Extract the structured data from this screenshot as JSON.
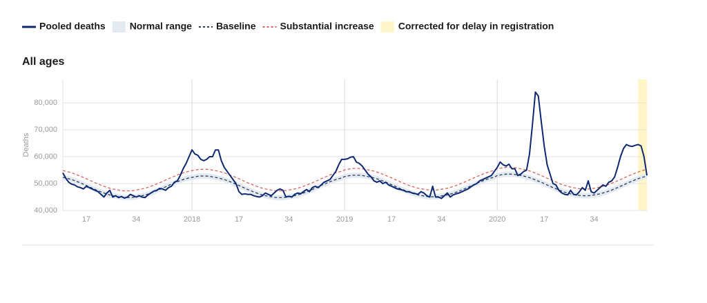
{
  "chart_data": {
    "type": "line",
    "title": "All ages",
    "y_label": "Deaths",
    "ylim": [
      40000,
      88700
    ],
    "yticks": [
      {
        "value": 40000,
        "label": "40,000"
      },
      {
        "value": 50000,
        "label": "50,000"
      },
      {
        "value": 60000,
        "label": "60,000"
      },
      {
        "value": 70000,
        "label": "70,000"
      },
      {
        "value": 80000,
        "label": "80,000"
      }
    ],
    "grid": true,
    "categories": [
      null,
      null,
      null,
      null,
      null,
      null,
      null,
      null,
      "17",
      null,
      null,
      null,
      null,
      null,
      null,
      null,
      null,
      null,
      null,
      null,
      null,
      null,
      null,
      null,
      null,
      "34",
      null,
      null,
      null,
      null,
      null,
      null,
      null,
      null,
      null,
      null,
      null,
      null,
      null,
      null,
      null,
      null,
      null,
      null,
      "2018",
      null,
      null,
      null,
      null,
      null,
      null,
      null,
      null,
      null,
      null,
      null,
      null,
      null,
      null,
      null,
      "17",
      null,
      null,
      null,
      null,
      null,
      null,
      null,
      null,
      null,
      null,
      null,
      null,
      null,
      null,
      null,
      null,
      "34",
      null,
      null,
      null,
      null,
      null,
      null,
      null,
      null,
      null,
      null,
      null,
      null,
      null,
      null,
      null,
      null,
      null,
      null,
      "2019",
      null,
      null,
      null,
      null,
      null,
      null,
      null,
      null,
      null,
      null,
      null,
      null,
      null,
      null,
      null,
      "17",
      null,
      null,
      null,
      null,
      null,
      null,
      null,
      null,
      null,
      null,
      null,
      null,
      null,
      null,
      null,
      null,
      "34",
      null,
      null,
      null,
      null,
      null,
      null,
      null,
      null,
      null,
      null,
      null,
      null,
      null,
      null,
      null,
      null,
      null,
      null,
      "2020",
      null,
      null,
      null,
      null,
      null,
      null,
      null,
      null,
      null,
      null,
      null,
      null,
      null,
      null,
      null,
      "17",
      null,
      null,
      null,
      null,
      null,
      null,
      null,
      null,
      null,
      null,
      null,
      null,
      null,
      null,
      null,
      null,
      "34",
      null,
      null,
      null,
      null,
      null,
      null,
      null,
      null,
      null,
      null,
      null,
      null,
      null,
      null,
      null,
      null,
      null,
      null
    ],
    "series": [
      {
        "name": "Pooled deaths",
        "color": "#0d2872",
        "dash": false,
        "values": [
          54000,
          52000,
          50500,
          49800,
          49500,
          48800,
          48500,
          48000,
          49000,
          48500,
          48000,
          47500,
          47000,
          46000,
          45000,
          46500,
          47500,
          45000,
          45500,
          44800,
          45200,
          44600,
          45000,
          46000,
          45500,
          45000,
          45500,
          45000,
          44800,
          45800,
          46500,
          47200,
          47500,
          48200,
          48000,
          47500,
          48500,
          49000,
          50500,
          51000,
          53000,
          55500,
          57500,
          60000,
          62500,
          61000,
          60500,
          59000,
          58500,
          59000,
          60000,
          60000,
          62500,
          62500,
          58500,
          56000,
          54500,
          53000,
          51500,
          50000,
          47000,
          46000,
          46200,
          46000,
          46000,
          45500,
          45200,
          45000,
          45500,
          46500,
          46000,
          45500,
          46500,
          47500,
          48000,
          47500,
          45000,
          45300,
          45000,
          46000,
          46500,
          46200,
          47000,
          47800,
          47000,
          48500,
          49000,
          48500,
          49500,
          50500,
          51000,
          51500,
          53000,
          54500,
          57000,
          59000,
          59000,
          59200,
          59800,
          60000,
          58000,
          57500,
          56500,
          55000,
          53500,
          52500,
          51000,
          50500,
          51000,
          50000,
          50500,
          49500,
          49000,
          48500,
          48000,
          47800,
          47500,
          47000,
          47000,
          46500,
          46300,
          46000,
          47000,
          46500,
          45500,
          45000,
          49000,
          45000,
          45000,
          44500,
          45500,
          46500,
          45000,
          45800,
          46200,
          46500,
          47000,
          47500,
          48000,
          48800,
          49500,
          50000,
          51000,
          51500,
          52000,
          52500,
          53000,
          54500,
          56000,
          58000,
          57000,
          56500,
          57200,
          55500,
          55500,
          53000,
          53500,
          54500,
          55000,
          61000,
          72000,
          84000,
          82500,
          73000,
          64000,
          57000,
          53500,
          50000,
          49500,
          47500,
          46500,
          46000,
          45800,
          47500,
          46000,
          45800,
          47000,
          48500,
          47500,
          51000,
          47000,
          46500,
          47500,
          48500,
          49500,
          49000,
          50500,
          51000,
          52500,
          56000,
          60000,
          63000,
          64500,
          64000,
          63800,
          64200,
          64500,
          64000,
          60000,
          53000
        ]
      },
      {
        "name": "Baseline",
        "color": "#2b3a55",
        "dash": true,
        "values": [
          52300,
          52100,
          51800,
          51500,
          51100,
          50700,
          50200,
          49800,
          49300,
          48800,
          48300,
          47800,
          47400,
          46900,
          46500,
          46100,
          45800,
          45500,
          45300,
          45100,
          44900,
          44800,
          44800,
          44800,
          44900,
          45100,
          45300,
          45500,
          45800,
          46100,
          46500,
          46900,
          47400,
          47800,
          48300,
          48800,
          49300,
          49800,
          50200,
          50700,
          51100,
          51500,
          51800,
          52100,
          52300,
          52500,
          52700,
          52800,
          52800,
          52800,
          52700,
          52500,
          52300,
          52100,
          51800,
          51500,
          51100,
          50700,
          50200,
          49800,
          49300,
          48800,
          48300,
          47800,
          47400,
          46900,
          46500,
          46100,
          45800,
          45500,
          45300,
          45100,
          44900,
          44800,
          44800,
          44800,
          44900,
          45100,
          45300,
          45500,
          45800,
          46100,
          46500,
          46900,
          47400,
          47800,
          48300,
          48800,
          49300,
          49800,
          50200,
          50700,
          51100,
          51500,
          51800,
          52100,
          52600,
          52800,
          53000,
          53100,
          53100,
          53100,
          53000,
          52800,
          52600,
          52400,
          52100,
          51800,
          51400,
          51000,
          50500,
          50100,
          49600,
          49100,
          48600,
          48100,
          47700,
          47200,
          46800,
          46400,
          46100,
          45800,
          45600,
          45400,
          45200,
          45100,
          45100,
          45100,
          45200,
          45400,
          45600,
          45800,
          46100,
          46400,
          46800,
          47200,
          47700,
          48100,
          48600,
          49100,
          49600,
          50100,
          50500,
          51000,
          51400,
          51800,
          52100,
          52400,
          53000,
          53200,
          53400,
          53500,
          53500,
          53500,
          53400,
          53200,
          53000,
          52800,
          52500,
          52200,
          51800,
          51400,
          50900,
          50500,
          50000,
          49500,
          49000,
          48500,
          48100,
          47600,
          47200,
          46800,
          46500,
          46200,
          46000,
          45800,
          45600,
          45500,
          45500,
          45500,
          45600,
          45800,
          46000,
          46200,
          46500,
          46800,
          47200,
          47600,
          48100,
          48500,
          49000,
          49500,
          50000,
          50500,
          50900,
          51400,
          51800,
          52200,
          52500,
          52800
        ]
      },
      {
        "name": "Substantial increase",
        "color": "#e0605a",
        "dash": true,
        "values": [
          54800,
          54600,
          54300,
          54000,
          53600,
          53200,
          52700,
          52300,
          51800,
          51300,
          50800,
          50300,
          49900,
          49400,
          49000,
          48600,
          48300,
          48000,
          47800,
          47600,
          47400,
          47300,
          47300,
          47300,
          47400,
          47600,
          47800,
          48000,
          48300,
          48600,
          49000,
          49400,
          49900,
          50300,
          50800,
          51300,
          51800,
          52300,
          52700,
          53200,
          53600,
          54000,
          54300,
          54600,
          54800,
          55000,
          55200,
          55300,
          55300,
          55300,
          55200,
          55000,
          54800,
          54600,
          54300,
          54000,
          53600,
          53200,
          52700,
          52300,
          51800,
          51300,
          50800,
          50300,
          49900,
          49400,
          49000,
          48600,
          48300,
          48000,
          47800,
          47600,
          47400,
          47300,
          47300,
          47300,
          47400,
          47600,
          47800,
          48000,
          48300,
          48600,
          49000,
          49400,
          49900,
          50300,
          50800,
          51300,
          51800,
          52300,
          52700,
          53200,
          53600,
          54000,
          54300,
          54600,
          55100,
          55300,
          55500,
          55600,
          55600,
          55600,
          55500,
          55300,
          55100,
          54900,
          54600,
          54300,
          53900,
          53500,
          53000,
          52600,
          52100,
          51600,
          51100,
          50600,
          50200,
          49700,
          49300,
          48900,
          48600,
          48300,
          48100,
          47900,
          47700,
          47600,
          47600,
          47600,
          47700,
          47900,
          48100,
          48300,
          48600,
          48900,
          49300,
          49700,
          50200,
          50600,
          51100,
          51600,
          52100,
          52600,
          53000,
          53500,
          53900,
          54300,
          54600,
          54900,
          55500,
          55700,
          55900,
          56000,
          56000,
          56000,
          55900,
          55700,
          55500,
          55300,
          55000,
          54700,
          54300,
          53900,
          53400,
          53000,
          52500,
          52000,
          51500,
          51000,
          50600,
          50100,
          49700,
          49300,
          49000,
          48700,
          48500,
          48300,
          48100,
          48000,
          48000,
          48000,
          48100,
          48300,
          48500,
          48700,
          49000,
          49300,
          49700,
          50100,
          50600,
          51000,
          51500,
          52000,
          52500,
          53000,
          53400,
          53900,
          54300,
          54700,
          55000,
          55300
        ]
      }
    ],
    "normal_range": {
      "name": "Normal range",
      "color": "#e4eaf1",
      "lower": [
        51300,
        51100,
        50800,
        50500,
        50100,
        49700,
        49200,
        48800,
        48300,
        47800,
        47300,
        46800,
        46400,
        45900,
        45500,
        45100,
        44800,
        44500,
        44300,
        44100,
        43900,
        43800,
        43800,
        43800,
        43900,
        44100,
        44300,
        44500,
        44800,
        45100,
        45500,
        45900,
        46400,
        46800,
        47300,
        47800,
        48300,
        48800,
        49200,
        49700,
        50100,
        50500,
        50800,
        51100,
        51300,
        51500,
        51700,
        51800,
        51800,
        51800,
        51700,
        51500,
        51300,
        51100,
        50800,
        50500,
        50100,
        49700,
        49200,
        48800,
        48300,
        47800,
        47300,
        46800,
        46400,
        45900,
        45500,
        45100,
        44800,
        44500,
        44300,
        44100,
        43900,
        43800,
        43800,
        43800,
        43900,
        44100,
        44300,
        44500,
        44800,
        45100,
        45500,
        45900,
        46400,
        46800,
        47300,
        47800,
        48300,
        48800,
        49200,
        49700,
        50100,
        50500,
        50800,
        51100,
        51600,
        51800,
        52000,
        52100,
        52100,
        52100,
        52000,
        51800,
        51600,
        51400,
        51100,
        50800,
        50400,
        50000,
        49500,
        49100,
        48600,
        48100,
        47600,
        47100,
        46700,
        46200,
        45800,
        45400,
        45100,
        44800,
        44600,
        44400,
        44200,
        44100,
        44100,
        44100,
        44200,
        44400,
        44600,
        44800,
        45100,
        45400,
        45800,
        46200,
        46700,
        47100,
        47600,
        48100,
        48600,
        49100,
        49500,
        50000,
        50400,
        50800,
        51100,
        51400,
        52000,
        52200,
        52400,
        52500,
        52500,
        52500,
        52400,
        52200,
        52000,
        51800,
        51500,
        51200,
        50800,
        50400,
        49900,
        49500,
        49000,
        48500,
        48000,
        47500,
        47100,
        46600,
        46200,
        45800,
        45500,
        45200,
        45000,
        44800,
        44600,
        44500,
        44500,
        44500,
        44600,
        44800,
        45000,
        45200,
        45500,
        45800,
        46200,
        46600,
        47100,
        47500,
        48000,
        48500,
        49000,
        49500,
        49900,
        50400,
        50800,
        51200,
        51500,
        51800
      ],
      "upper": [
        53300,
        53100,
        52800,
        52500,
        52100,
        51700,
        51200,
        50800,
        50300,
        49800,
        49300,
        48800,
        48400,
        47900,
        47500,
        47100,
        46800,
        46500,
        46300,
        46100,
        45900,
        45800,
        45800,
        45800,
        45900,
        46100,
        46300,
        46500,
        46800,
        47100,
        47500,
        47900,
        48400,
        48800,
        49300,
        49800,
        50300,
        50800,
        51200,
        51700,
        52100,
        52500,
        52800,
        53100,
        53300,
        53500,
        53700,
        53800,
        53800,
        53800,
        53700,
        53500,
        53300,
        53100,
        52800,
        52500,
        52100,
        51700,
        51200,
        50800,
        50300,
        49800,
        49300,
        48800,
        48400,
        47900,
        47500,
        47100,
        46800,
        46500,
        46300,
        46100,
        45900,
        45800,
        45800,
        45800,
        45900,
        46100,
        46300,
        46500,
        46800,
        47100,
        47500,
        47900,
        48400,
        48800,
        49300,
        49800,
        50300,
        50800,
        51200,
        51700,
        52100,
        52500,
        52800,
        53100,
        53600,
        53800,
        54000,
        54100,
        54100,
        54100,
        54000,
        53800,
        53600,
        53400,
        53100,
        52800,
        52400,
        52000,
        51500,
        51100,
        50600,
        50100,
        49600,
        49100,
        48700,
        48200,
        47800,
        47400,
        47100,
        46800,
        46600,
        46400,
        46200,
        46100,
        46100,
        46100,
        46200,
        46400,
        46600,
        46800,
        47100,
        47400,
        47800,
        48200,
        48700,
        49100,
        49600,
        50100,
        50600,
        51100,
        51500,
        52000,
        52400,
        52800,
        53100,
        53400,
        54000,
        54200,
        54400,
        54500,
        54500,
        54500,
        54400,
        54200,
        54000,
        53800,
        53500,
        53200,
        52800,
        52400,
        51900,
        51500,
        51000,
        50500,
        50000,
        49500,
        49100,
        48600,
        48200,
        47800,
        47500,
        47200,
        47000,
        46800,
        46600,
        46500,
        46500,
        46500,
        46600,
        46800,
        47000,
        47200,
        47500,
        47800,
        48200,
        48600,
        49100,
        49500,
        50000,
        50500,
        51000,
        51500,
        51900,
        52400,
        52800,
        53200,
        53500,
        53800
      ]
    },
    "delay_correction": {
      "name": "Corrected for delay in registration",
      "color": "#fff5c6",
      "x": [
        196,
        199
      ]
    }
  }
}
